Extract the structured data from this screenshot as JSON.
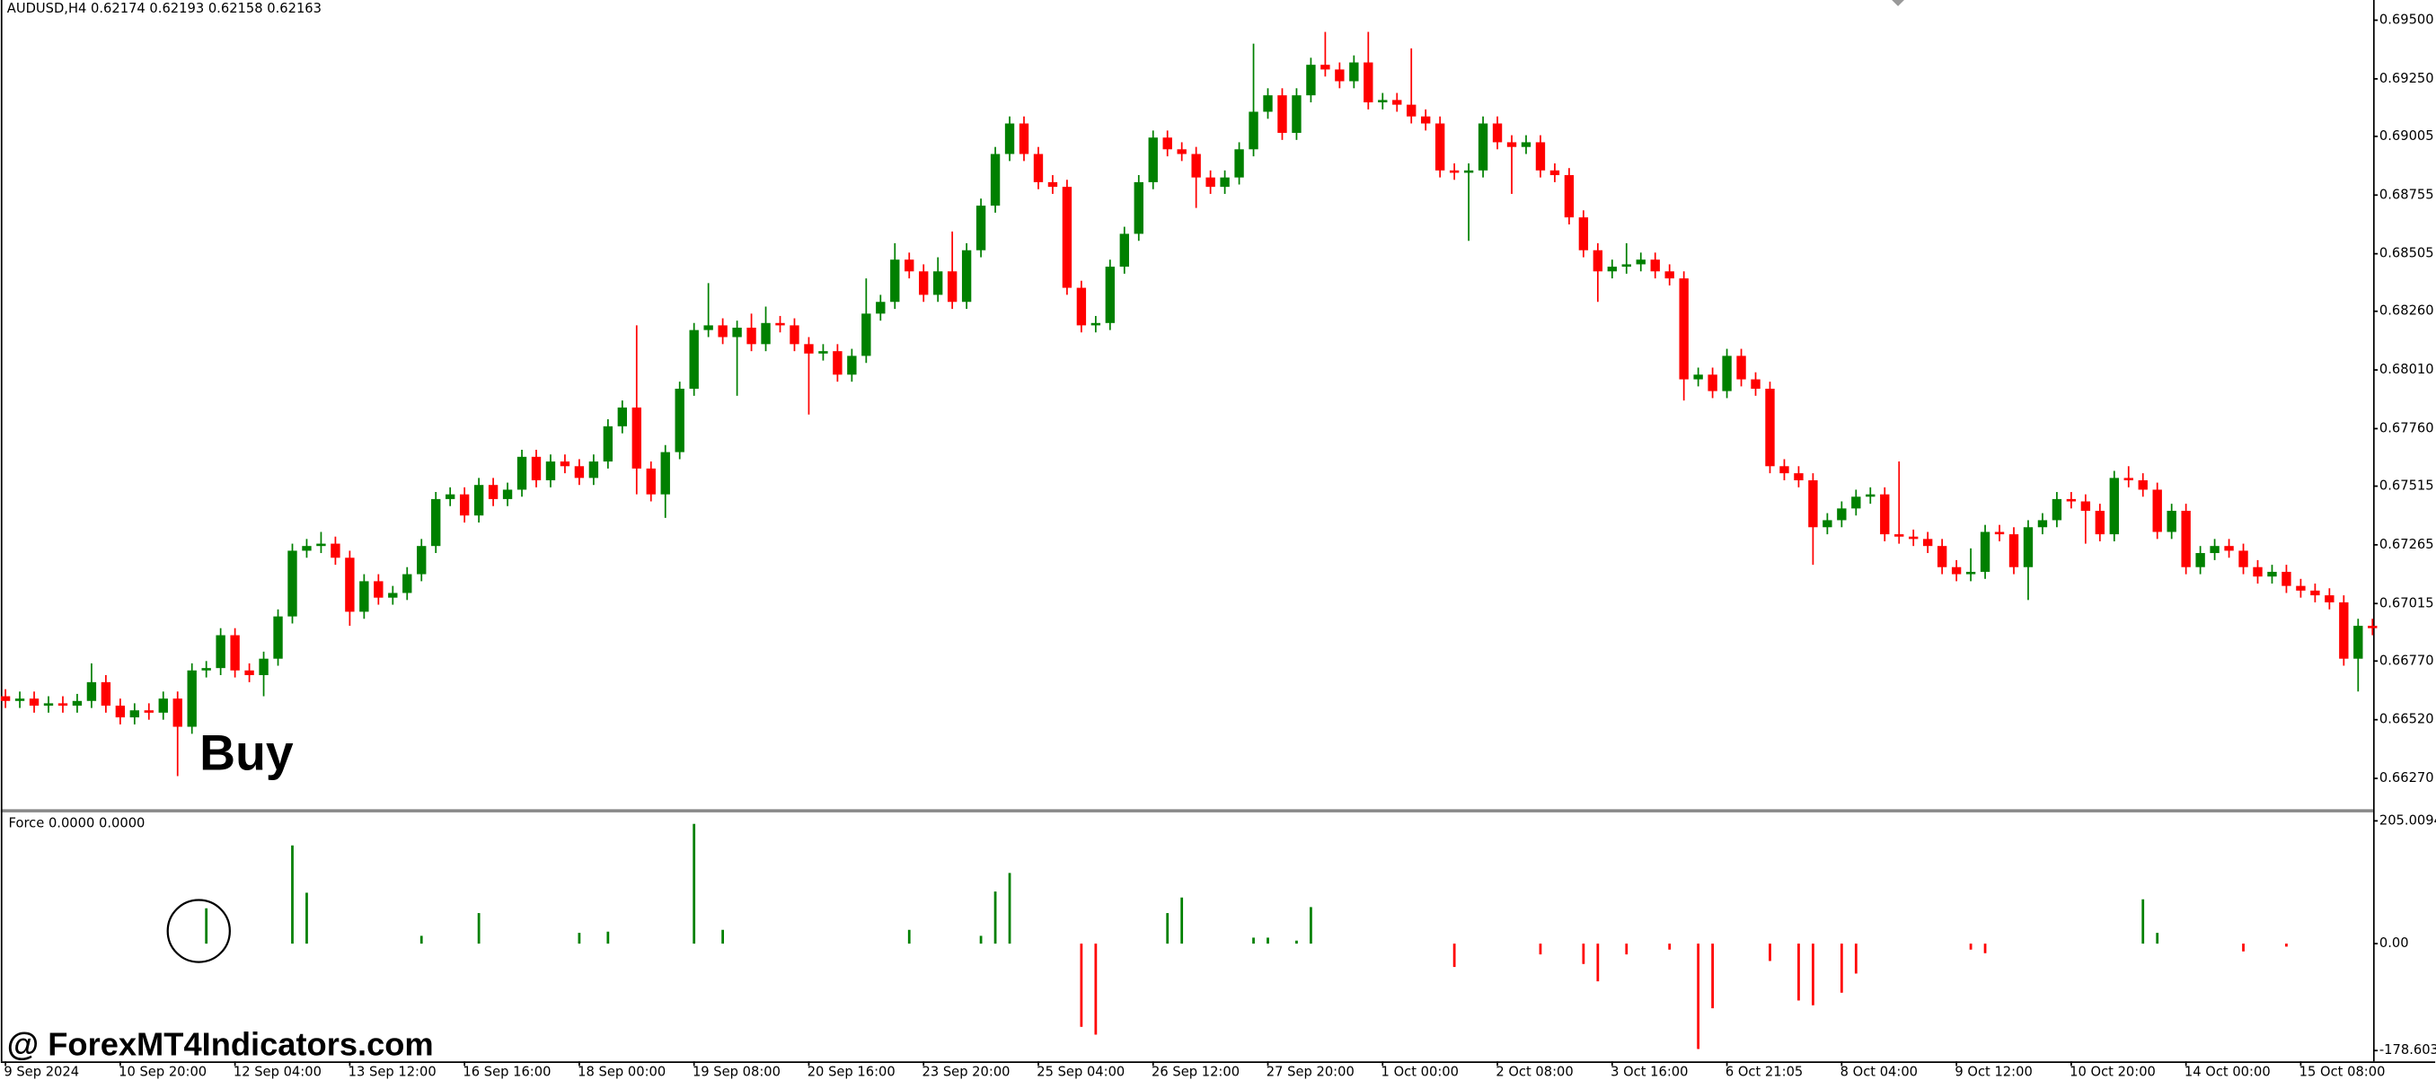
{
  "chart_data": [
    {
      "type": "candlestick",
      "title": "AUDUSD,H4 0.62174 0.62193 0.62158 0.62163",
      "annotation": "Buy",
      "up_color": "#008000",
      "down_color": "#ff0000",
      "ylim": [
        0.66142,
        0.69586
      ],
      "yticks": [
        {
          "value": 0.695,
          "label": "0.69500"
        },
        {
          "value": 0.6925,
          "label": "0.69250"
        },
        {
          "value": 0.69005,
          "label": "0.69005"
        },
        {
          "value": 0.68755,
          "label": "0.68755"
        },
        {
          "value": 0.68505,
          "label": "0.68505"
        },
        {
          "value": 0.6826,
          "label": "0.68260"
        },
        {
          "value": 0.6801,
          "label": "0.68010"
        },
        {
          "value": 0.6776,
          "label": "0.67760"
        },
        {
          "value": 0.67515,
          "label": "0.67515"
        },
        {
          "value": 0.67265,
          "label": "0.67265"
        },
        {
          "value": 0.67015,
          "label": "0.67015"
        },
        {
          "value": 0.6677,
          "label": "0.66770"
        },
        {
          "value": 0.6652,
          "label": "0.66520"
        },
        {
          "value": 0.6627,
          "label": "0.66270"
        }
      ],
      "categories": [
        "9 Sep 2024",
        null,
        null,
        null,
        null,
        null,
        null,
        null,
        "10 Sep 20:00",
        null,
        null,
        null,
        null,
        null,
        null,
        null,
        "12 Sep 04:00",
        null,
        null,
        null,
        null,
        null,
        null,
        null,
        "13 Sep 12:00",
        null,
        null,
        null,
        null,
        null,
        null,
        null,
        "16 Sep 16:00",
        null,
        null,
        null,
        null,
        null,
        null,
        null,
        "18 Sep 00:00",
        null,
        null,
        null,
        null,
        null,
        null,
        null,
        "19 Sep 08:00",
        null,
        null,
        null,
        null,
        null,
        null,
        null,
        "20 Sep 16:00",
        null,
        null,
        null,
        null,
        null,
        null,
        null,
        "23 Sep 20:00",
        null,
        null,
        null,
        null,
        null,
        null,
        null,
        "25 Sep 04:00",
        null,
        null,
        null,
        null,
        null,
        null,
        null,
        "26 Sep 12:00",
        null,
        null,
        null,
        null,
        null,
        null,
        null,
        "27 Sep 20:00",
        null,
        null,
        null,
        null,
        null,
        null,
        null,
        "1 Oct 00:00",
        null,
        null,
        null,
        null,
        null,
        null,
        null,
        "2 Oct 08:00",
        null,
        null,
        null,
        null,
        null,
        null,
        null,
        "3 Oct 16:00",
        null,
        null,
        null,
        null,
        null,
        null,
        null,
        "6 Oct 21:05",
        null,
        null,
        null,
        null,
        null,
        null,
        null,
        "8 Oct 04:00",
        null,
        null,
        null,
        null,
        null,
        null,
        null,
        "9 Oct 12:00",
        null,
        null,
        null,
        null,
        null,
        null,
        null,
        "10 Oct 20:00",
        null,
        null,
        null,
        null,
        null,
        null,
        null,
        "14 Oct 00:00",
        null,
        null,
        null,
        null,
        null,
        null,
        null,
        "15 Oct 08:00",
        null,
        null,
        null,
        null,
        null
      ],
      "open": [
        0.6662,
        0.666,
        0.6661,
        0.6658,
        0.6659,
        0.6658,
        0.666,
        0.6668,
        0.6658,
        0.6653,
        0.6656,
        0.6655,
        0.6661,
        0.6649,
        0.6673,
        0.6674,
        0.6688,
        0.6673,
        0.6671,
        0.6678,
        0.6696,
        0.6724,
        0.6726,
        0.6727,
        0.6721,
        0.6698,
        0.6711,
        0.6704,
        0.6706,
        0.6714,
        0.6726,
        0.6746,
        0.6748,
        0.6739,
        0.6752,
        0.6746,
        0.675,
        0.6764,
        0.6754,
        0.6762,
        0.676,
        0.6755,
        0.6762,
        0.6777,
        0.6785,
        0.6759,
        0.6748,
        0.6766,
        0.6793,
        0.6818,
        0.682,
        0.6815,
        0.6819,
        0.6812,
        0.6821,
        0.682,
        0.6812,
        0.6808,
        0.6809,
        0.6799,
        0.6807,
        0.6825,
        0.683,
        0.6848,
        0.6843,
        0.6833,
        0.6843,
        0.683,
        0.6852,
        0.6871,
        0.6893,
        0.6906,
        0.6893,
        0.6881,
        0.6879,
        0.6836,
        0.682,
        0.6821,
        0.6845,
        0.6859,
        0.6881,
        0.69,
        0.6895,
        0.6893,
        0.6883,
        0.6879,
        0.6883,
        0.6895,
        0.6911,
        0.6918,
        0.6902,
        0.6918,
        0.6931,
        0.6929,
        0.6924,
        0.6932,
        0.6915,
        0.6916,
        0.6914,
        0.6909,
        0.6906,
        0.6886,
        0.6885,
        0.6886,
        0.6906,
        0.6898,
        0.6896,
        0.6898,
        0.6886,
        0.6884,
        0.6866,
        0.6852,
        0.6843,
        0.6845,
        0.6846,
        0.6848,
        0.6843,
        0.684,
        0.6797,
        0.6799,
        0.6792,
        0.6807,
        0.6797,
        0.6793,
        0.676,
        0.6757,
        0.6754,
        0.6734,
        0.6737,
        0.6742,
        0.6747,
        0.6748,
        0.6731,
        0.673,
        0.6729,
        0.6726,
        0.6717,
        0.6714,
        0.6715,
        0.6732,
        0.6731,
        0.6717,
        0.6734,
        0.6737,
        0.6746,
        0.6745,
        0.6741,
        0.6731,
        0.6755,
        0.6754,
        0.675,
        0.6732,
        0.6741,
        0.6717,
        0.6723,
        0.6726,
        0.6724,
        0.6717,
        0.6713,
        0.6715,
        0.6709,
        0.6707,
        0.6705,
        0.6702,
        0.6678,
        0.6692
      ],
      "high": [
        0.6665,
        0.6664,
        0.6664,
        0.6662,
        0.6662,
        0.6663,
        0.6676,
        0.6671,
        0.6661,
        0.6659,
        0.6659,
        0.6664,
        0.6664,
        0.6676,
        0.6677,
        0.6691,
        0.6691,
        0.6676,
        0.6681,
        0.6699,
        0.6727,
        0.6729,
        0.6732,
        0.673,
        0.6724,
        0.6714,
        0.6714,
        0.6709,
        0.6717,
        0.6729,
        0.6749,
        0.6751,
        0.6751,
        0.6755,
        0.6755,
        0.6753,
        0.6767,
        0.6767,
        0.6765,
        0.6765,
        0.6763,
        0.6765,
        0.678,
        0.6788,
        0.682,
        0.6762,
        0.6769,
        0.6796,
        0.6821,
        0.6838,
        0.6823,
        0.6822,
        0.6825,
        0.6828,
        0.6824,
        0.6823,
        0.6815,
        0.6812,
        0.6812,
        0.681,
        0.684,
        0.6833,
        0.6855,
        0.6851,
        0.6846,
        0.6849,
        0.686,
        0.6855,
        0.6874,
        0.6896,
        0.6909,
        0.6909,
        0.6896,
        0.6884,
        0.6882,
        0.6839,
        0.6824,
        0.6848,
        0.6862,
        0.6884,
        0.6903,
        0.6903,
        0.6898,
        0.6896,
        0.6886,
        0.6886,
        0.6898,
        0.694,
        0.6921,
        0.6921,
        0.6921,
        0.6934,
        0.6945,
        0.6932,
        0.6935,
        0.6945,
        0.6919,
        0.6919,
        0.6938,
        0.6912,
        0.6909,
        0.6889,
        0.6889,
        0.6909,
        0.6909,
        0.6901,
        0.6901,
        0.6901,
        0.6889,
        0.6887,
        0.6869,
        0.6855,
        0.6848,
        0.6855,
        0.6851,
        0.6851,
        0.6846,
        0.6843,
        0.6802,
        0.6802,
        0.681,
        0.681,
        0.68,
        0.6796,
        0.6763,
        0.676,
        0.6757,
        0.674,
        0.6745,
        0.675,
        0.6751,
        0.6751,
        0.6762,
        0.6733,
        0.6732,
        0.6729,
        0.672,
        0.6725,
        0.6735,
        0.6735,
        0.6734,
        0.6737,
        0.674,
        0.6749,
        0.6749,
        0.6748,
        0.6744,
        0.6758,
        0.676,
        0.6757,
        0.6753,
        0.6744,
        0.6744,
        0.6726,
        0.6729,
        0.6729,
        0.6727,
        0.672,
        0.6718,
        0.6718,
        0.6712,
        0.671,
        0.6708,
        0.6705,
        0.6695,
        0.6695
      ],
      "low": [
        0.6657,
        0.6657,
        0.6655,
        0.6655,
        0.6655,
        0.6655,
        0.6657,
        0.6655,
        0.665,
        0.665,
        0.6652,
        0.6652,
        0.6628,
        0.6646,
        0.667,
        0.6671,
        0.667,
        0.6668,
        0.6662,
        0.6675,
        0.6693,
        0.6721,
        0.6723,
        0.6718,
        0.6692,
        0.6695,
        0.6701,
        0.6701,
        0.6703,
        0.6711,
        0.6723,
        0.6743,
        0.6736,
        0.6736,
        0.6743,
        0.6743,
        0.6747,
        0.6751,
        0.6751,
        0.6757,
        0.6752,
        0.6752,
        0.6759,
        0.6774,
        0.6748,
        0.6745,
        0.6738,
        0.6763,
        0.679,
        0.6815,
        0.6812,
        0.679,
        0.6809,
        0.6809,
        0.6817,
        0.6809,
        0.6782,
        0.6805,
        0.6796,
        0.6796,
        0.6804,
        0.6822,
        0.6827,
        0.684,
        0.683,
        0.683,
        0.6827,
        0.6827,
        0.6849,
        0.6868,
        0.689,
        0.689,
        0.6878,
        0.6876,
        0.6833,
        0.6817,
        0.6817,
        0.6818,
        0.6842,
        0.6856,
        0.6878,
        0.6892,
        0.689,
        0.687,
        0.6876,
        0.6876,
        0.688,
        0.6892,
        0.6908,
        0.6899,
        0.6899,
        0.6915,
        0.6926,
        0.6921,
        0.6921,
        0.6912,
        0.6912,
        0.6911,
        0.6906,
        0.6903,
        0.6883,
        0.6882,
        0.6856,
        0.6883,
        0.6895,
        0.6876,
        0.6893,
        0.6883,
        0.6881,
        0.6863,
        0.6849,
        0.683,
        0.684,
        0.6842,
        0.6843,
        0.684,
        0.6837,
        0.6788,
        0.6794,
        0.6789,
        0.6789,
        0.6794,
        0.679,
        0.6757,
        0.6754,
        0.6751,
        0.6718,
        0.6731,
        0.6734,
        0.6739,
        0.6744,
        0.6728,
        0.6727,
        0.6726,
        0.6723,
        0.6714,
        0.6711,
        0.6711,
        0.6712,
        0.6728,
        0.6714,
        0.6703,
        0.6731,
        0.6734,
        0.6742,
        0.6727,
        0.6728,
        0.6728,
        0.6751,
        0.6747,
        0.6729,
        0.6729,
        0.6714,
        0.6714,
        0.672,
        0.6721,
        0.6714,
        0.671,
        0.671,
        0.6706,
        0.6704,
        0.6702,
        0.6699,
        0.6675,
        0.6664,
        0.6688
      ],
      "close": [
        0.666,
        0.6661,
        0.6658,
        0.6659,
        0.6658,
        0.666,
        0.6668,
        0.6658,
        0.6653,
        0.6656,
        0.6655,
        0.6661,
        0.6649,
        0.6673,
        0.6674,
        0.6688,
        0.6673,
        0.6671,
        0.6678,
        0.6696,
        0.6724,
        0.6726,
        0.6727,
        0.6721,
        0.6698,
        0.6711,
        0.6704,
        0.6706,
        0.6714,
        0.6726,
        0.6746,
        0.6748,
        0.6739,
        0.6752,
        0.6746,
        0.675,
        0.6764,
        0.6754,
        0.6762,
        0.676,
        0.6755,
        0.6762,
        0.6777,
        0.6785,
        0.6759,
        0.6748,
        0.6766,
        0.6793,
        0.6818,
        0.682,
        0.6815,
        0.6819,
        0.6812,
        0.6821,
        0.682,
        0.6812,
        0.6808,
        0.6809,
        0.6799,
        0.6807,
        0.6825,
        0.683,
        0.6848,
        0.6843,
        0.6833,
        0.6843,
        0.683,
        0.6852,
        0.6871,
        0.6893,
        0.6906,
        0.6893,
        0.6881,
        0.6879,
        0.6836,
        0.682,
        0.6821,
        0.6845,
        0.6859,
        0.6881,
        0.69,
        0.6895,
        0.6893,
        0.6883,
        0.6879,
        0.6883,
        0.6895,
        0.6911,
        0.6918,
        0.6902,
        0.6918,
        0.6931,
        0.6929,
        0.6924,
        0.6932,
        0.6915,
        0.6916,
        0.6914,
        0.6909,
        0.6906,
        0.6886,
        0.6885,
        0.6886,
        0.6906,
        0.6898,
        0.6896,
        0.6898,
        0.6886,
        0.6884,
        0.6866,
        0.6852,
        0.6843,
        0.6845,
        0.6846,
        0.6848,
        0.6843,
        0.684,
        0.6797,
        0.6799,
        0.6792,
        0.6807,
        0.6797,
        0.6793,
        0.676,
        0.6757,
        0.6754,
        0.6734,
        0.6737,
        0.6742,
        0.6747,
        0.6748,
        0.6731,
        0.673,
        0.6729,
        0.6726,
        0.6717,
        0.6714,
        0.6715,
        0.6732,
        0.6731,
        0.6717,
        0.6734,
        0.6737,
        0.6746,
        0.6745,
        0.6741,
        0.6731,
        0.6755,
        0.6754,
        0.675,
        0.6732,
        0.6741,
        0.6717,
        0.6723,
        0.6726,
        0.6724,
        0.6717,
        0.6713,
        0.6715,
        0.6709,
        0.6707,
        0.6705,
        0.6702,
        0.6678,
        0.6692,
        0.6691
      ]
    },
    {
      "type": "bar",
      "title": "Force 0.0000 0.0000",
      "up_color": "#008000",
      "down_color": "#ff0000",
      "ylim": [
        -196.7,
        218.0
      ],
      "yticks": [
        205.0094,
        {
          "value": 0,
          "label": "0.00"
        },
        -178.6034
      ],
      "values": [
        null,
        null,
        null,
        null,
        null,
        null,
        null,
        null,
        null,
        null,
        null,
        null,
        null,
        null,
        59,
        null,
        null,
        null,
        null,
        null,
        164,
        85,
        null,
        null,
        null,
        null,
        null,
        null,
        null,
        13,
        null,
        null,
        null,
        51,
        null,
        null,
        null,
        null,
        null,
        null,
        18,
        null,
        20,
        null,
        null,
        null,
        null,
        null,
        200,
        null,
        23,
        null,
        null,
        null,
        null,
        null,
        null,
        null,
        null,
        null,
        null,
        null,
        null,
        23,
        null,
        null,
        null,
        null,
        13,
        87,
        118,
        null,
        null,
        null,
        null,
        -139,
        -152,
        null,
        null,
        null,
        null,
        51,
        77,
        null,
        null,
        null,
        null,
        10,
        10,
        null,
        5,
        61,
        null,
        null,
        null,
        null,
        null,
        null,
        null,
        null,
        null,
        -39,
        null,
        null,
        null,
        null,
        null,
        -18,
        null,
        null,
        -34,
        -63,
        null,
        -18,
        null,
        null,
        -10,
        null,
        -176,
        -108,
        null,
        null,
        null,
        -29,
        null,
        -95,
        -103,
        null,
        -82,
        -50,
        null,
        null,
        null,
        null,
        null,
        null,
        null,
        -10,
        -16,
        null,
        null,
        null,
        null,
        null,
        null,
        null,
        null,
        null,
        null,
        74,
        18,
        null,
        null,
        null,
        null,
        null,
        -13,
        null,
        null,
        -5,
        null,
        null,
        null,
        null,
        null,
        null
      ]
    }
  ],
  "watermark": "@ ForexMT4Indicators.com"
}
